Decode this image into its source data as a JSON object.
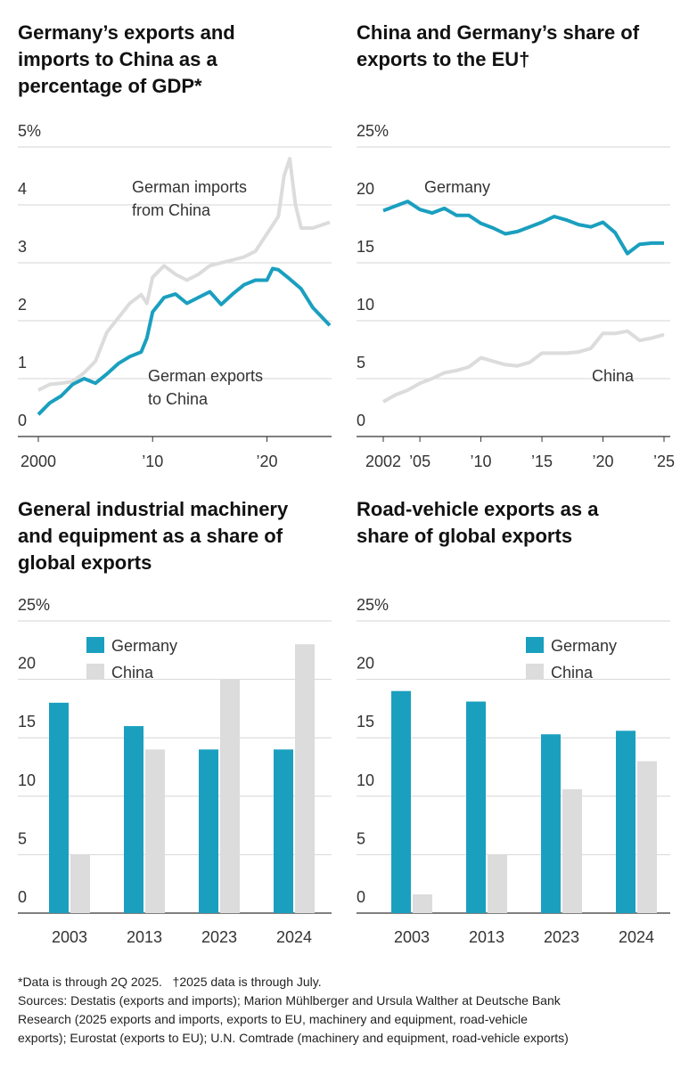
{
  "chart_data": [
    {
      "type": "line",
      "title": "Germany’s exports and imports to China as a percentage of GDP*",
      "xlim": [
        2000,
        2025.5
      ],
      "xticks": [
        2000,
        {
          "value": 2010,
          "label": "’10"
        },
        {
          "value": 2020,
          "label": "’20"
        }
      ],
      "ylim": [
        0,
        5
      ],
      "yticks": [
        0,
        1,
        2,
        3,
        4,
        {
          "value": 5,
          "label": "5%"
        }
      ],
      "grid": true,
      "annotations": [
        [
          "German imports",
          "from China"
        ],
        [
          "German exports",
          "to China"
        ]
      ],
      "series": [
        {
          "name": "German imports from China",
          "color": "#dcdcdc",
          "x": [
            2000,
            2001,
            2002,
            2003,
            2004,
            2005,
            2006,
            2007,
            2008,
            2009,
            2009.5,
            2010,
            2011,
            2012,
            2013,
            2014,
            2015,
            2016,
            2017,
            2018,
            2019,
            2020,
            2021,
            2021.5,
            2022,
            2022.5,
            2023,
            2024,
            2025.5
          ],
          "values": [
            0.8,
            0.9,
            0.92,
            0.95,
            1.1,
            1.3,
            1.8,
            2.05,
            2.3,
            2.45,
            2.3,
            2.75,
            2.95,
            2.8,
            2.7,
            2.8,
            2.95,
            3.0,
            3.05,
            3.1,
            3.2,
            3.5,
            3.8,
            4.5,
            4.8,
            4.0,
            3.6,
            3.6,
            3.7
          ]
        },
        {
          "name": "German exports to China",
          "color": "#1a9fbf",
          "x": [
            2000,
            2001,
            2002,
            2003,
            2004,
            2005,
            2006,
            2007,
            2008,
            2009,
            2009.5,
            2010,
            2011,
            2012,
            2013,
            2014,
            2015,
            2016,
            2017,
            2018,
            2019,
            2020,
            2020.5,
            2021,
            2022,
            2023,
            2024,
            2025.5
          ],
          "values": [
            0.38,
            0.58,
            0.7,
            0.9,
            1.0,
            0.92,
            1.08,
            1.26,
            1.38,
            1.46,
            1.7,
            2.15,
            2.4,
            2.46,
            2.3,
            2.4,
            2.5,
            2.28,
            2.46,
            2.62,
            2.7,
            2.7,
            2.9,
            2.88,
            2.72,
            2.55,
            2.23,
            1.92
          ]
        }
      ]
    },
    {
      "type": "line",
      "title": "China and Germany’s share of exports to the EU†",
      "xlim": [
        2002,
        2025
      ],
      "xticks": [
        2002,
        {
          "value": 2005,
          "label": "’05"
        },
        {
          "value": 2010,
          "label": "’10"
        },
        {
          "value": 2015,
          "label": "’15"
        },
        {
          "value": 2020,
          "label": "’20"
        },
        {
          "value": 2025,
          "label": "’25"
        }
      ],
      "ylim": [
        0,
        25
      ],
      "yticks": [
        0,
        5,
        10,
        15,
        20,
        {
          "value": 25,
          "label": "25%"
        }
      ],
      "grid": true,
      "annotations": [
        [
          "Germany"
        ],
        [
          "China"
        ]
      ],
      "series": [
        {
          "name": "Germany",
          "color": "#1a9fbf",
          "x": [
            2002,
            2003,
            2004,
            2005,
            2006,
            2007,
            2008,
            2009,
            2010,
            2011,
            2012,
            2013,
            2014,
            2015,
            2016,
            2017,
            2018,
            2019,
            2020,
            2021,
            2022,
            2023,
            2024,
            2025
          ],
          "values": [
            19.5,
            19.9,
            20.3,
            19.6,
            19.3,
            19.7,
            19.1,
            19.1,
            18.4,
            18.0,
            17.5,
            17.7,
            18.1,
            18.5,
            19.0,
            18.7,
            18.3,
            18.1,
            18.5,
            17.6,
            15.8,
            16.6,
            16.7,
            16.7
          ]
        },
        {
          "name": "China",
          "color": "#dcdcdc",
          "x": [
            2002,
            2003,
            2004,
            2005,
            2006,
            2007,
            2008,
            2009,
            2010,
            2011,
            2012,
            2013,
            2014,
            2015,
            2016,
            2017,
            2018,
            2019,
            2020,
            2021,
            2022,
            2023,
            2024,
            2025
          ],
          "values": [
            3.0,
            3.6,
            4.0,
            4.6,
            5.0,
            5.5,
            5.7,
            6.0,
            6.8,
            6.5,
            6.2,
            6.1,
            6.4,
            7.2,
            7.2,
            7.2,
            7.3,
            7.6,
            8.9,
            8.9,
            9.1,
            8.3,
            8.5,
            8.8
          ]
        }
      ]
    },
    {
      "type": "bar",
      "title": "General industrial machinery and equipment as a share of global exports",
      "categories": [
        "2003",
        "2013",
        "2023",
        "2024"
      ],
      "ylim": [
        0,
        25
      ],
      "yticks": [
        0,
        5,
        10,
        15,
        20,
        {
          "value": 25,
          "label": "25%"
        }
      ],
      "grid": true,
      "legend": "top-left",
      "series": [
        {
          "name": "Germany",
          "color": "#1a9fbf",
          "values": [
            18,
            16,
            14,
            14
          ]
        },
        {
          "name": "China",
          "color": "#dcdcdc",
          "values": [
            5,
            14,
            20,
            23
          ]
        }
      ]
    },
    {
      "type": "bar",
      "title": "Road-vehicle exports as a share of global exports",
      "categories": [
        "2003",
        "2013",
        "2023",
        "2024"
      ],
      "ylim": [
        0,
        25
      ],
      "yticks": [
        0,
        5,
        10,
        15,
        20,
        {
          "value": 25,
          "label": "25%"
        }
      ],
      "grid": true,
      "legend": "top-right",
      "series": [
        {
          "name": "Germany",
          "color": "#1a9fbf",
          "values": [
            19,
            18.1,
            15.3,
            15.6
          ]
        },
        {
          "name": "China",
          "color": "#dcdcdc",
          "values": [
            1.6,
            5,
            10.6,
            13
          ]
        }
      ]
    }
  ],
  "notes": [
    "*Data is through 2Q 2025.   †2025 data is through July.",
    "Sources: Destatis (exports and imports); Marion Mühlberger and Ursula Walther at Deutsche Bank",
    "Research (2025 exports and imports, exports to EU, machinery and equipment, road-vehicle",
    "exports); Eurostat (exports to EU); U.N. Comtrade (machinery and equipment, road-vehicle exports)"
  ]
}
